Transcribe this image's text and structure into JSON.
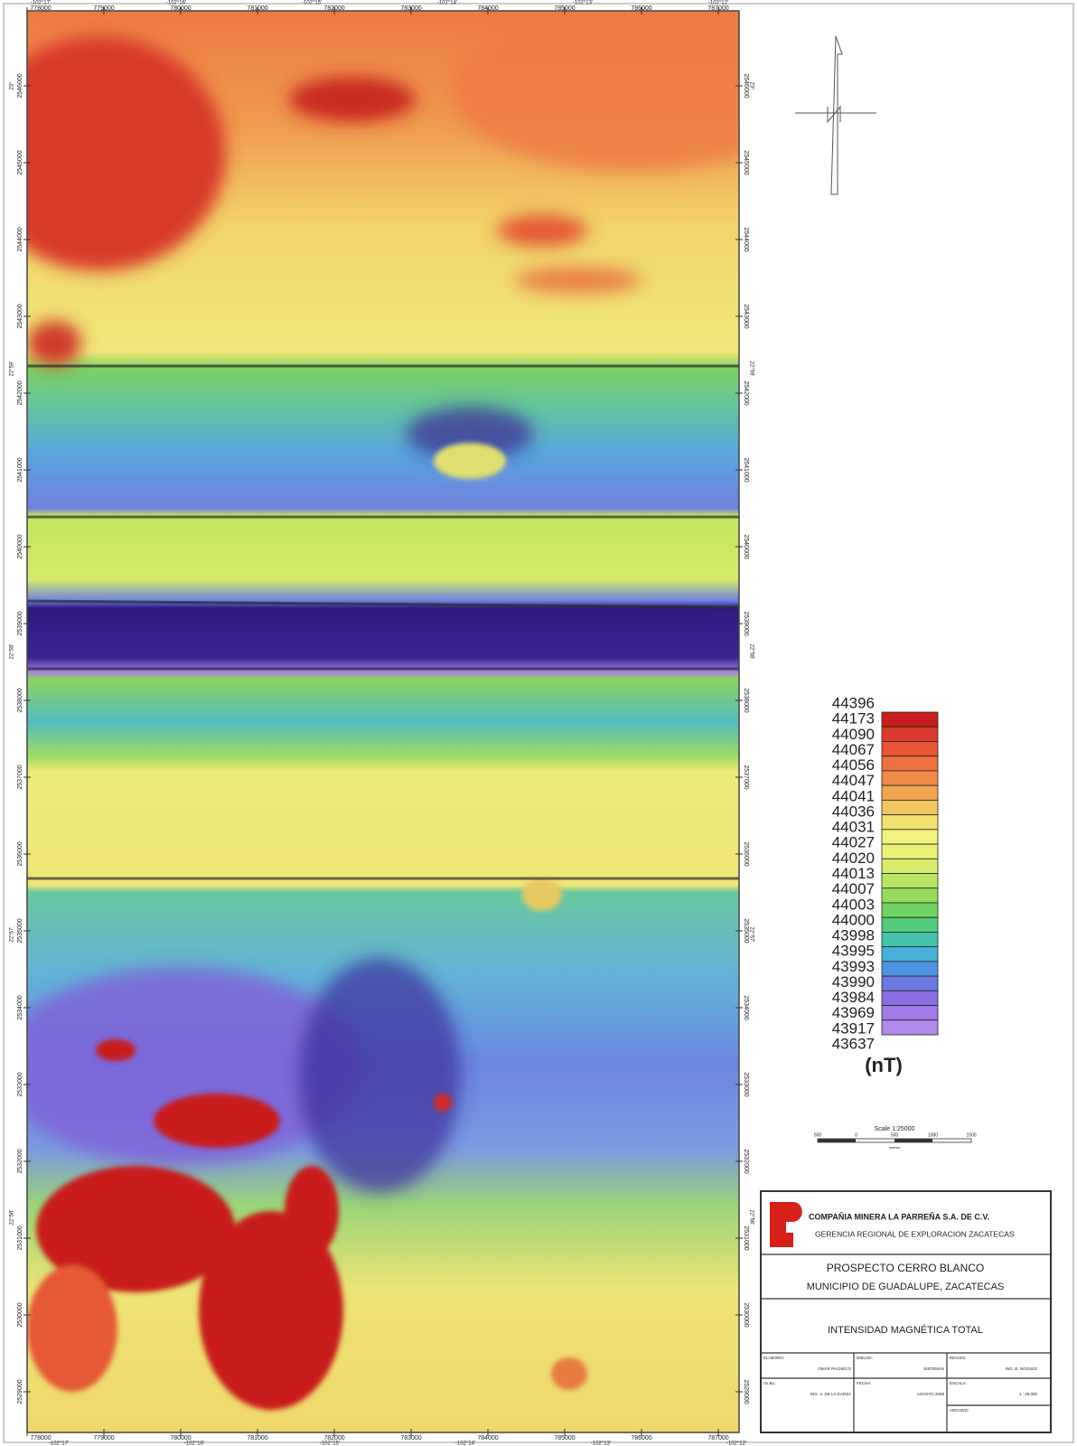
{
  "map": {
    "eastings": [
      778000,
      779000,
      780000,
      781000,
      782000,
      783000,
      784000,
      785000,
      786000,
      787000
    ],
    "northings": [
      2546000,
      2545000,
      2544000,
      2543000,
      2542000,
      2541000,
      2540000,
      2539000,
      2538000,
      2537000,
      2536000,
      2535000,
      2534000,
      2533000,
      2532000,
      2531000,
      2530000,
      2529000
    ],
    "longitudes": [
      "-102°17'",
      "-102°16'",
      "-102°15'",
      "-102°14'",
      "-102°13'",
      "-102°12'"
    ],
    "latitudes": [
      "23°",
      "22°59'",
      "22°58'",
      "22°57'",
      "22°56'"
    ]
  },
  "legend": {
    "values": [
      44396,
      44173,
      44090,
      44067,
      44056,
      44047,
      44041,
      44036,
      44031,
      44027,
      44020,
      44013,
      44007,
      44003,
      44000,
      43998,
      43995,
      43993,
      43990,
      43984,
      43969,
      43917,
      43637
    ],
    "colors": [
      "#c81e1e",
      "#dc3a2c",
      "#e85636",
      "#ee7040",
      "#f08a48",
      "#f2a652",
      "#f2c660",
      "#f2e070",
      "#f4f27e",
      "#ecf276",
      "#d6ee6c",
      "#b8e664",
      "#98dc5e",
      "#70d462",
      "#52cc7c",
      "#44c2aa",
      "#44b0d8",
      "#4e94e2",
      "#6a7ae2",
      "#8a6ee2",
      "#a47ae8",
      "#b08aec"
    ],
    "unit": "(nT)"
  },
  "scale": {
    "title": "Scale 1:25000",
    "ticks": [
      "500",
      "0",
      "500",
      "1000",
      "1500"
    ],
    "units": "metros"
  },
  "title_block": {
    "company": "COMPAÑIA MINERA LA PARREÑA S.A. DE C.V.",
    "department": "GERENCIA REGIONAL DE EXPLORACION ZACATECAS",
    "project": "PROSPECTO CERRO BLANCO",
    "municipality": "MUNICIPIO DE GUADALUPE, ZACATECAS",
    "map_title": "INTENSIDAD MAGNÉTICA TOTAL",
    "fields": [
      [
        "ELABORO:",
        "OMAR PACHECO"
      ],
      [
        "DIBUJO:",
        "SISTEMAS"
      ],
      [
        "REVISO:",
        "ING. B. NOGUEZ"
      ],
      [
        "Vo.Bo.:",
        "ING. V. DE LA GARZA"
      ],
      [
        "FECHA:",
        "AGOSTO 2008"
      ],
      [
        "ESCALA:",
        "1 : 25,000"
      ],
      [
        "ARCHIVO:"
      ]
    ]
  }
}
